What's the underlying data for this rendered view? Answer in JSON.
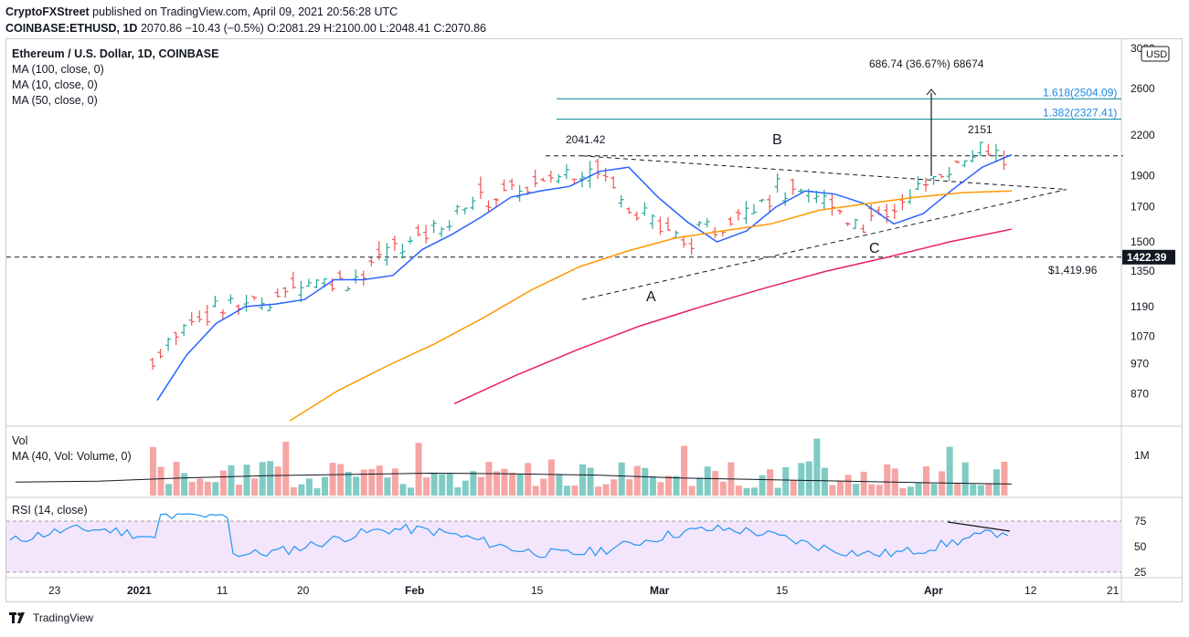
{
  "header": {
    "line1_author": "CryptoFXStreet",
    "line1_rest": " published on TradingView.com, April 09, 2021 20:56:28 UTC",
    "line2_symbol": "COINBASE:ETHUSD, 1D ",
    "line2_ohlc": "2070.86 −10.43 (−0.5%) O:2081.29 H:2100.00 L:2048.41 C:2070.86"
  },
  "legend": {
    "title": "Ethereum / U.S. Dollar, 1D, COINBASE",
    "items": [
      "MA (100, close, 0)",
      "MA (10, close, 0)",
      "MA (50, close, 0)"
    ]
  },
  "volume_legend": {
    "title": "Vol",
    "ma": "MA (40, Vol: Volume, 0)",
    "tick": "1M"
  },
  "rsi_legend": {
    "title": "RSI (14, close)",
    "ticks": [
      "75",
      "50",
      "25"
    ]
  },
  "footer": {
    "brand": "TradingView"
  },
  "colors": {
    "up": "#26a69a",
    "down": "#ef5350",
    "ma10": "#2962ff",
    "ma50": "#ff9800",
    "ma100": "#e91e63",
    "rsi": "#2196f3",
    "rsi_band": "#f3e5fb",
    "fib": "#00838f",
    "vol_up": "#80cbc4",
    "vol_down": "#f5a6a4"
  },
  "chart_data": {
    "type": "candlestick",
    "symbol": "ETHUSD",
    "ylim": [
      800,
      3000
    ],
    "price_axis_ticks": [
      "3000",
      "2600",
      "2200",
      "1900",
      "1700",
      "1500",
      "1350",
      "1190",
      "1070",
      "970",
      "870"
    ],
    "price_axis_badges": {
      "currency": "USD",
      "last_price": "1422.39"
    },
    "x_tick_labels": [
      "23",
      "2021",
      "11",
      "20",
      "Feb",
      "15",
      "Mar",
      "15",
      "Apr",
      "12",
      "21"
    ],
    "annotations": {
      "top_label": "686.74 (36.67%) 68674",
      "fib_1": "1.618(2504.09)",
      "fib_2": "1.382(2327.41)",
      "high_a": "2041.42",
      "high_b": "2151",
      "support": "$1,419.96",
      "point_a": "A",
      "point_b": "B",
      "point_c": "C"
    },
    "levels": {
      "fib_1618": 2504.09,
      "fib_1382": 2327.41,
      "resistance": 2041.42,
      "support": 1419.96
    },
    "ma10_close": [
      850,
      1000,
      1120,
      1190,
      1200,
      1220,
      1310,
      1310,
      1330,
      1460,
      1540,
      1640,
      1760,
      1800,
      1830,
      1930,
      1960,
      1760,
      1610,
      1500,
      1560,
      1700,
      1800,
      1780,
      1720,
      1600,
      1660,
      1810,
      1960,
      2050
    ],
    "ma50_close": [
      790,
      880,
      960,
      1040,
      1140,
      1260,
      1370,
      1450,
      1520,
      1560,
      1600,
      1680,
      1720,
      1760,
      1790,
      1800
    ],
    "ma100_close": [
      840,
      930,
      1020,
      1110,
      1190,
      1270,
      1350,
      1420,
      1500,
      1570
    ],
    "volume_ma40_pct": [
      0.42,
      0.45,
      0.55,
      0.62,
      0.66,
      0.7,
      0.68,
      0.64,
      0.55,
      0.5,
      0.45,
      0.4,
      0.36
    ]
  }
}
